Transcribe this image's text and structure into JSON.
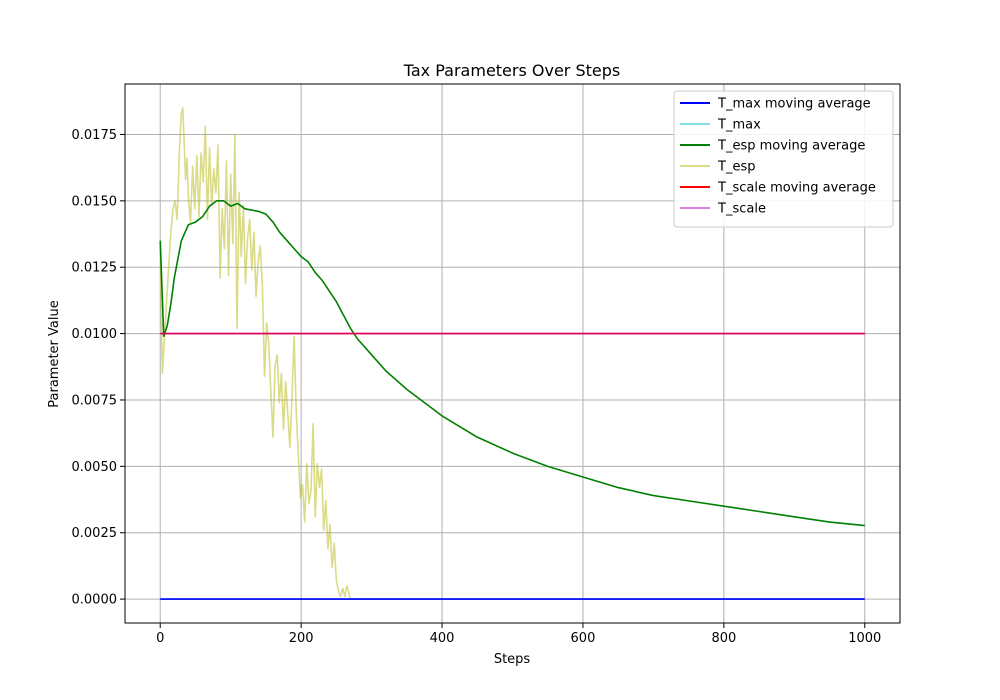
{
  "chart_data": {
    "type": "line",
    "title": "Tax Parameters Over Steps",
    "xlabel": "Steps",
    "ylabel": "Parameter Value",
    "xlim": [
      -50,
      1050
    ],
    "ylim": [
      -0.0009,
      0.0194
    ],
    "xticks": [
      0,
      200,
      400,
      600,
      800,
      1000
    ],
    "xtick_labels": [
      "0",
      "200",
      "400",
      "600",
      "800",
      "1000"
    ],
    "yticks": [
      0.0,
      0.0025,
      0.005,
      0.0075,
      0.01,
      0.0125,
      0.015,
      0.0175
    ],
    "ytick_labels": [
      "0.0000",
      "0.0025",
      "0.0050",
      "0.0075",
      "0.0100",
      "0.0125",
      "0.0150",
      "0.0175"
    ],
    "grid": true,
    "legend_position": "top-right",
    "series": [
      {
        "name": "T_max moving average",
        "color": "#0000ff",
        "opacity": 1,
        "x": [
          0,
          1000
        ],
        "y": [
          0,
          0
        ]
      },
      {
        "name": "T_max",
        "color": "#00bfbf",
        "opacity": 0.5,
        "x": [
          0,
          1000
        ],
        "y": [
          0,
          0
        ]
      },
      {
        "name": "T_esp moving average",
        "color": "#008000",
        "opacity": 1,
        "x": [
          0,
          5,
          10,
          15,
          20,
          30,
          40,
          50,
          60,
          70,
          80,
          90,
          100,
          110,
          120,
          140,
          150,
          160,
          170,
          180,
          190,
          200,
          210,
          220,
          230,
          240,
          250,
          260,
          270,
          280,
          300,
          320,
          350,
          400,
          450,
          500,
          550,
          600,
          650,
          700,
          750,
          800,
          850,
          900,
          950,
          1000
        ],
        "y": [
          0.0135,
          0.0099,
          0.0103,
          0.0111,
          0.0121,
          0.0135,
          0.0141,
          0.0142,
          0.0144,
          0.0148,
          0.015,
          0.015,
          0.0148,
          0.0149,
          0.0147,
          0.0146,
          0.0145,
          0.0142,
          0.0138,
          0.0135,
          0.0132,
          0.0129,
          0.0127,
          0.0123,
          0.012,
          0.0116,
          0.0112,
          0.0107,
          0.0102,
          0.0098,
          0.0092,
          0.0086,
          0.0079,
          0.0069,
          0.0061,
          0.0055,
          0.005,
          0.0046,
          0.0042,
          0.0039,
          0.0037,
          0.0035,
          0.0033,
          0.0031,
          0.0029,
          0.00277
        ]
      },
      {
        "name": "T_esp",
        "color": "#bcbd22",
        "opacity": 0.55,
        "x": [
          0,
          3,
          6,
          9,
          12,
          15,
          18,
          21,
          24,
          27,
          30,
          32,
          34,
          36,
          38,
          40,
          43,
          46,
          49,
          52,
          55,
          58,
          61,
          64,
          67,
          70,
          73,
          76,
          79,
          82,
          85,
          88,
          91,
          94,
          97,
          100,
          103,
          106,
          109,
          112,
          115,
          118,
          121,
          124,
          127,
          130,
          133,
          136,
          139,
          142,
          145,
          148,
          151,
          154,
          157,
          160,
          163,
          166,
          169,
          172,
          175,
          178,
          181,
          184,
          187,
          190,
          193,
          196,
          199,
          202,
          205,
          208,
          211,
          214,
          217,
          220,
          223,
          226,
          229,
          232,
          235,
          238,
          241,
          244,
          247,
          250,
          253,
          256,
          259,
          262,
          265,
          270,
          280,
          300,
          400,
          600,
          800,
          1000
        ],
        "y": [
          0.0135,
          0.0085,
          0.0098,
          0.0112,
          0.0125,
          0.0138,
          0.0147,
          0.015,
          0.0143,
          0.0168,
          0.0183,
          0.0185,
          0.0172,
          0.0158,
          0.0166,
          0.0151,
          0.0142,
          0.0163,
          0.0147,
          0.0167,
          0.0144,
          0.0168,
          0.0157,
          0.0178,
          0.0143,
          0.017,
          0.0148,
          0.0162,
          0.0153,
          0.0171,
          0.0121,
          0.0147,
          0.0132,
          0.0165,
          0.0122,
          0.016,
          0.0134,
          0.0175,
          0.0102,
          0.0153,
          0.0129,
          0.0148,
          0.0119,
          0.0136,
          0.0143,
          0.0124,
          0.0138,
          0.0114,
          0.0127,
          0.0133,
          0.0118,
          0.0084,
          0.0104,
          0.0096,
          0.0078,
          0.0061,
          0.0088,
          0.0092,
          0.0074,
          0.0085,
          0.0064,
          0.0082,
          0.007,
          0.0057,
          0.0076,
          0.0099,
          0.0071,
          0.0054,
          0.0038,
          0.0043,
          0.0029,
          0.0051,
          0.0036,
          0.0041,
          0.0066,
          0.0031,
          0.0051,
          0.0042,
          0.0049,
          0.0026,
          0.0037,
          0.0019,
          0.0028,
          0.0012,
          0.0021,
          0.0007,
          0.0003,
          0.0001,
          0.0004,
          0.0001,
          0.0005,
          0.0,
          0.0,
          0.0,
          0.0,
          0.0,
          0.0,
          0.0
        ]
      },
      {
        "name": "T_scale moving average",
        "color": "#ff0000",
        "opacity": 1,
        "x": [
          0,
          1000
        ],
        "y": [
          0.01,
          0.01
        ]
      },
      {
        "name": "T_scale",
        "color": "#bf00bf",
        "opacity": 0.5,
        "x": [
          0,
          1000
        ],
        "y": [
          0.01,
          0.01
        ]
      }
    ]
  }
}
